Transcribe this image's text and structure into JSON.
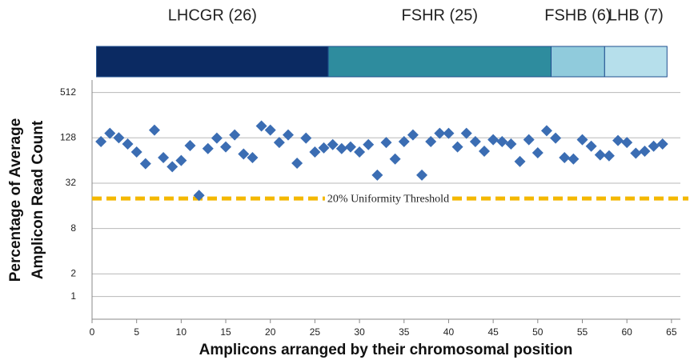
{
  "chart_data": {
    "type": "scatter",
    "x_label": "Amplicons arranged by their chromosomal position",
    "y_label": [
      "Percentage of Average",
      "Amplicon Read Count"
    ],
    "log_y": true,
    "grid": true,
    "xlim": [
      0,
      66
    ],
    "xticks": [
      0,
      5,
      10,
      15,
      20,
      25,
      30,
      35,
      40,
      45,
      50,
      55,
      60,
      65
    ],
    "ylim": [
      0.5,
      750
    ],
    "yticks": [
      1,
      2,
      8,
      32,
      128,
      512
    ],
    "regions": [
      {
        "label": "LHCGR (26)",
        "size": 26,
        "color": "#0b2a62"
      },
      {
        "label": "FSHR (25)",
        "size": 25,
        "color": "#2e8c9e"
      },
      {
        "label": "FSHB (6)",
        "size": 6,
        "color": "#90cbdc"
      },
      {
        "label": "LHB (7)",
        "size": 7,
        "color": "#b6dfeb"
      }
    ],
    "threshold": {
      "label": "20% Uniformity Threshold",
      "value": 20,
      "color": "#f4b800"
    },
    "series": [
      {
        "color": "#3b6db3",
        "x": [
          1,
          2,
          3,
          4,
          5,
          6,
          7,
          8,
          9,
          10,
          11,
          12,
          13,
          14,
          15,
          16,
          17,
          18,
          19,
          20,
          21,
          22,
          23,
          24,
          25,
          26,
          27,
          28,
          29,
          30,
          31,
          32,
          33,
          34,
          35,
          36,
          37,
          38,
          39,
          40,
          41,
          42,
          43,
          44,
          45,
          46,
          47,
          48,
          49,
          50,
          51,
          52,
          53,
          54,
          55,
          56,
          57,
          58,
          59,
          60,
          61,
          62,
          63,
          64
        ],
        "values": [
          114,
          147,
          128,
          106,
          83,
          58,
          162,
          70,
          53,
          64,
          101,
          22,
          92,
          127,
          97,
          140,
          78,
          70,
          184,
          162,
          111,
          140,
          59,
          127,
          83,
          94,
          104,
          92,
          97,
          83,
          104,
          41,
          111,
          67,
          114,
          140,
          41,
          114,
          147,
          147,
          97,
          147,
          114,
          85,
          121,
          114,
          106,
          62,
          121,
          81,
          159,
          127,
          70,
          67,
          121,
          99,
          76,
          74,
          118,
          111,
          80,
          85,
          99,
          106
        ]
      }
    ]
  }
}
